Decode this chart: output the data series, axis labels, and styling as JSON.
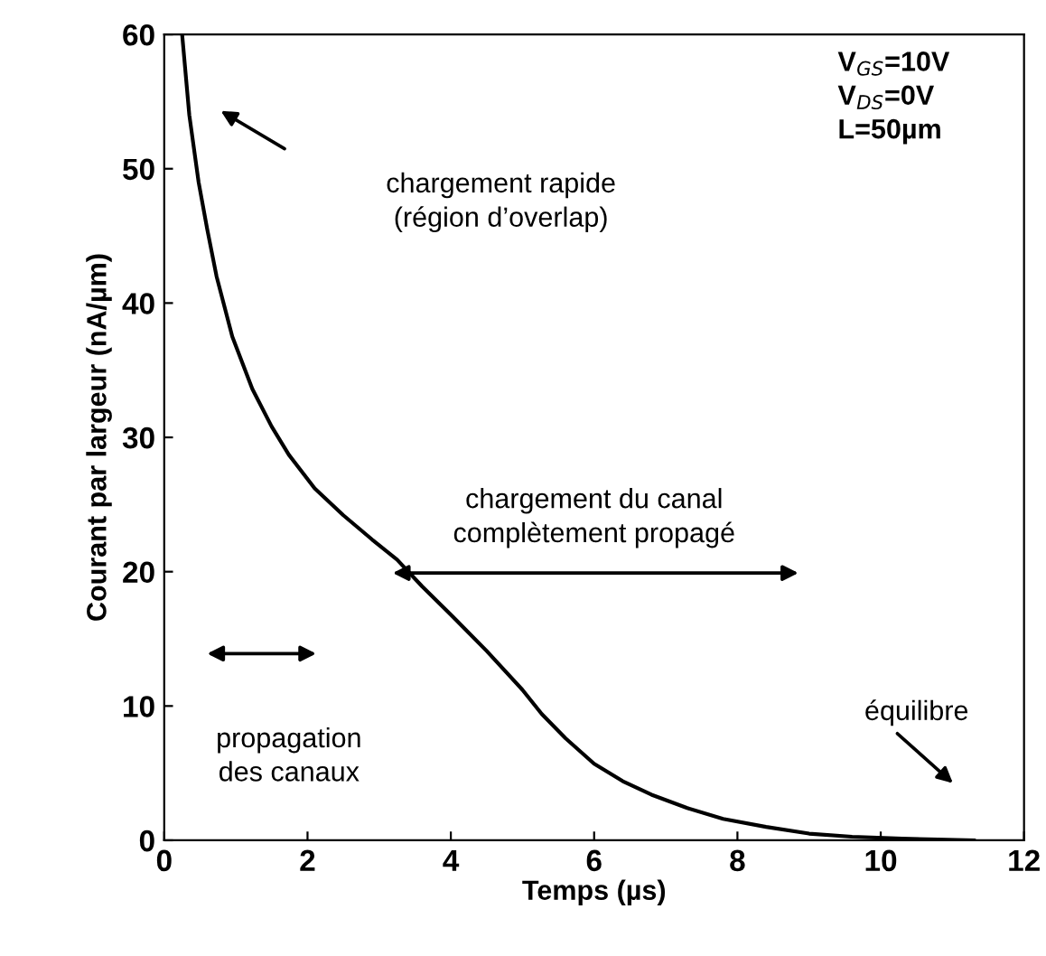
{
  "chart_data": {
    "type": "line",
    "xlabel": "Temps (µs)",
    "ylabel": "Courant par largeur (nA/µm)",
    "xlim": [
      0,
      12
    ],
    "ylim": [
      0,
      60
    ],
    "xticks": [
      0,
      2,
      4,
      6,
      8,
      10,
      12
    ],
    "yticks": [
      0,
      10,
      20,
      30,
      40,
      50,
      60
    ],
    "grid": false,
    "legend": false,
    "marker": "none",
    "line_style": "solid",
    "series": [
      {
        "color": "#000000",
        "x": [
          0.25,
          0.35,
          0.48,
          0.6,
          0.73,
          0.95,
          1.23,
          1.5,
          1.74,
          2.1,
          2.5,
          2.9,
          3.25,
          3.6,
          4.0,
          4.5,
          5.0,
          5.27,
          5.6,
          6.0,
          6.4,
          6.8,
          7.3,
          7.8,
          8.4,
          9.0,
          9.6,
          10.3,
          10.8,
          11.3
        ],
        "values": [
          60,
          54,
          49,
          45.5,
          42,
          37.5,
          33.6,
          30.8,
          28.7,
          26.2,
          24.2,
          22.4,
          20.9,
          18.9,
          16.8,
          14.1,
          11.2,
          9.4,
          7.6,
          5.7,
          4.4,
          3.4,
          2.4,
          1.6,
          1.0,
          0.5,
          0.27,
          0.13,
          0.06,
          0
        ]
      }
    ],
    "annotations": [
      "chargement rapide\n(région d’overlap)",
      "chargement du canal\ncomplètement propagé",
      "propagation\ndes canaux",
      "équilibre",
      "V$_{GS}$=10V\nV$_{DS}$=0V\nL=50µm"
    ]
  }
}
